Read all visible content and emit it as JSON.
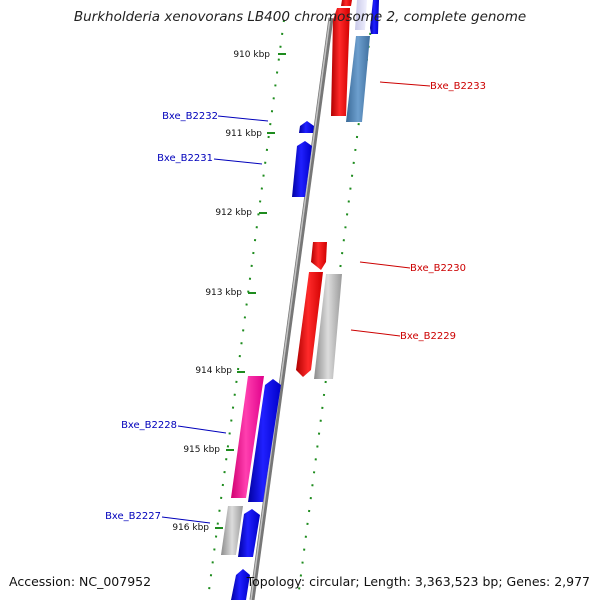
{
  "title": "Burkholderia xenovorans LB400 chromosome 2, complete genome",
  "footer": {
    "accession": "Accession: NC_007952",
    "summary": "Topology: circular; Length: 3,363,523 bp; Genes: 2,977"
  },
  "ticks": [
    "910 kbp",
    "911 kbp",
    "912 kbp",
    "913 kbp",
    "914 kbp",
    "915 kbp",
    "916 kbp"
  ],
  "genes": [
    {
      "label": "Bxe_B2233",
      "color": "#cc0000"
    },
    {
      "label": "Bxe_B2232",
      "color": "#0000bb"
    },
    {
      "label": "Bxe_B2231",
      "color": "#0000bb"
    },
    {
      "label": "Bxe_B2230",
      "color": "#cc0000"
    },
    {
      "label": "Bxe_B2229",
      "color": "#cc0000"
    },
    {
      "label": "Bxe_B2228",
      "color": "#0000bb"
    },
    {
      "label": "Bxe_B2227",
      "color": "#0000bb"
    }
  ],
  "colors": {
    "forward_cds": "#ff1a1a",
    "reverse_cds": "#0000ee",
    "steelblue_feature": "#4a7fb0",
    "grey_feature": "#a8a8a8",
    "pink_feature": "#ff1a99",
    "backbone": "#888888",
    "dotted_guides": "#1e8c1e"
  }
}
